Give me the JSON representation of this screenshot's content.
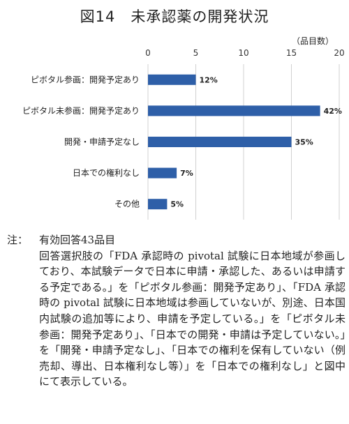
{
  "chart_data": {
    "type": "bar",
    "orientation": "horizontal",
    "title": "図14　未承認薬の開発状況",
    "unit_label": "（品目数）",
    "categories": [
      "ピボタル参画：開発予定あり",
      "ピボタル未参画：開発予定あり",
      "開発・申請予定なし",
      "日本での権利なし",
      "その他"
    ],
    "values": [
      5,
      18,
      15,
      3,
      2
    ],
    "data_labels": [
      "12%",
      "42%",
      "35%",
      "7%",
      "5%"
    ],
    "xlim": [
      0,
      20
    ],
    "x_ticks": [
      "0",
      "5",
      "10",
      "15",
      "20"
    ],
    "grid": true,
    "legend": "none",
    "bar_color": "#2e5fa8"
  },
  "note": {
    "label": "注：",
    "first_line": "有効回答43品目",
    "body": "回答選択肢の「FDA 承認時の pivotal 試験に日本地域が参画しており、本試験データで日本に申請・承認した、あるいは申請する予定である。」を「ピボタル参画：開発予定あり」、「FDA 承認時の pivotal 試験に日本地域は参画していないが、別途、日本国内試験の追加等により、申請を予定している。」を「ピボタル未参画：開発予定あり」、「日本での開発・申請は予定していない。」を「開発・申請予定なし」、「日本での権利を保有していない（例　売却、導出、日本権利なし等）」を「日本での権利なし」と図中にて表示している。"
  }
}
